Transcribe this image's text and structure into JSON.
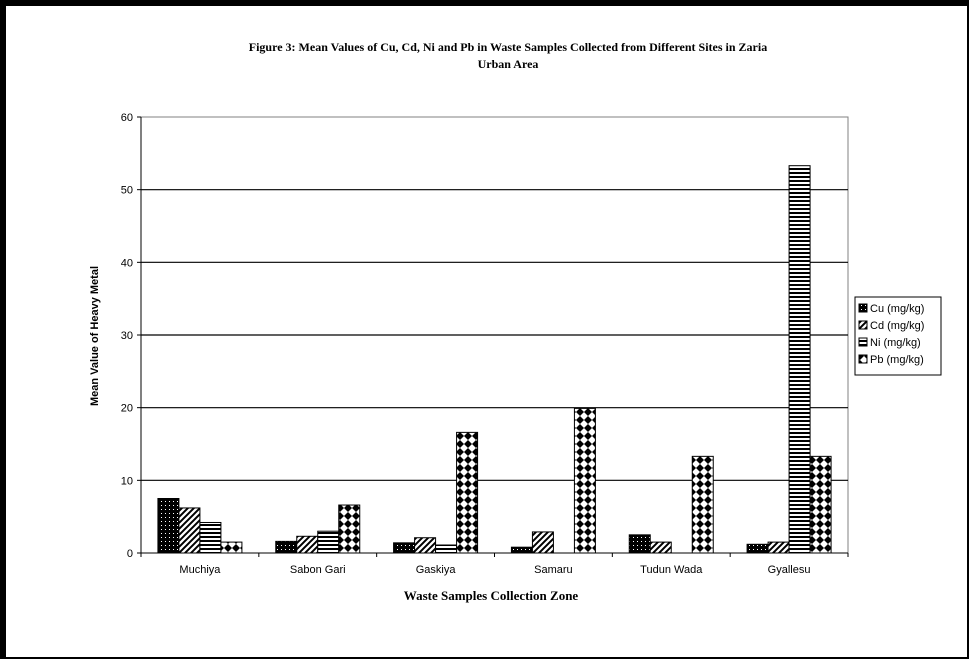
{
  "chart_data": {
    "type": "bar",
    "title": "Figure 3: Mean Values of Cu, Cd, Ni and Pb in Waste Samples Collected from Different Sites in Zaria Urban Area",
    "title_lines": [
      "Figure 3: Mean Values of Cu, Cd, Ni and Pb in Waste Samples Collected from Different Sites in Zaria",
      "Urban Area"
    ],
    "xlabel": "Waste Samples Collection Zone",
    "ylabel": "Mean Value of Heavy Metal",
    "categories": [
      "Muchiya",
      "Sabon Gari",
      "Gaskiya",
      "Samaru",
      "Tudun Wada",
      "Gyallesu"
    ],
    "ylim": [
      0,
      60
    ],
    "yticks": [
      0,
      10,
      20,
      30,
      40,
      50,
      60
    ],
    "grid": true,
    "legend_position": "right",
    "series": [
      {
        "name": "Cu (mg/kg)",
        "pattern": "dots",
        "values": [
          7.5,
          1.6,
          1.4,
          0.8,
          2.5,
          1.2
        ]
      },
      {
        "name": "Cd (mg/kg)",
        "pattern": "diagonal",
        "values": [
          6.2,
          2.3,
          2.1,
          2.9,
          1.5,
          1.5
        ]
      },
      {
        "name": "Ni (mg/kg)",
        "pattern": "horizontal",
        "values": [
          4.2,
          3.0,
          1.1,
          0,
          0,
          53.3
        ]
      },
      {
        "name": "Pb (mg/kg)",
        "pattern": "diamonds",
        "values": [
          1.5,
          6.6,
          16.6,
          19.9,
          13.3,
          13.3
        ]
      }
    ]
  }
}
